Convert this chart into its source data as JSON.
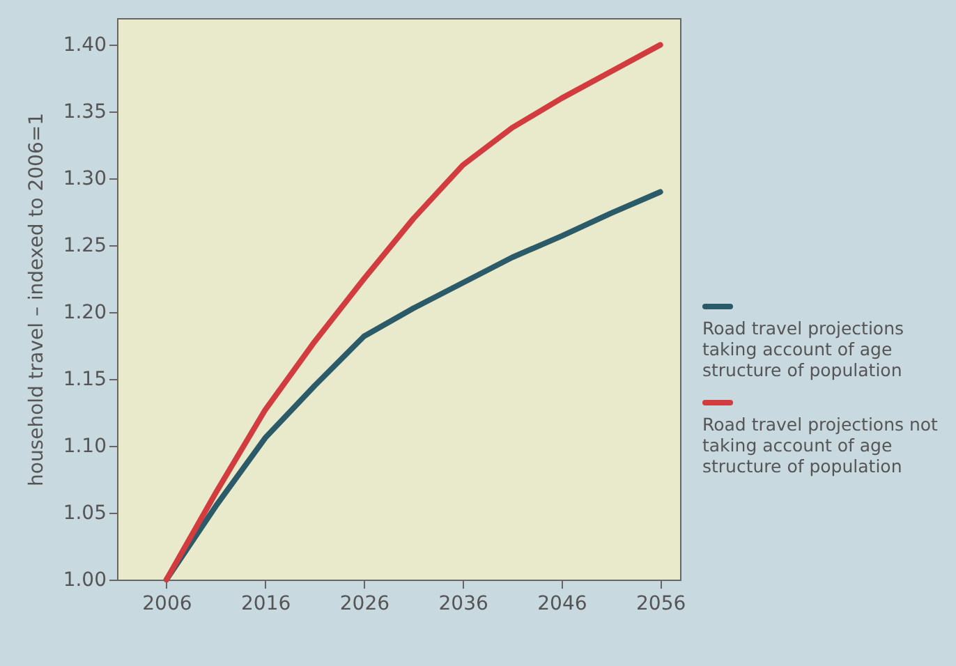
{
  "chart_data": {
    "type": "line",
    "ylabel": "household travel – indexed to 2006=1",
    "x": [
      2006,
      2011,
      2016,
      2021,
      2026,
      2031,
      2036,
      2041,
      2046,
      2051,
      2056
    ],
    "xlim": [
      2001,
      2058
    ],
    "xticks": [
      2006,
      2016,
      2026,
      2036,
      2046,
      2056
    ],
    "ylim": [
      1.0,
      1.42
    ],
    "yticks": [
      {
        "value": 1.0,
        "label": "1.00"
      },
      {
        "value": 1.05,
        "label": "1.05"
      },
      {
        "value": 1.1,
        "label": "1.10"
      },
      {
        "value": 1.15,
        "label": "1.15"
      },
      {
        "value": 1.2,
        "label": "1.20"
      },
      {
        "value": 1.25,
        "label": "1.25"
      },
      {
        "value": 1.3,
        "label": "1.30"
      },
      {
        "value": 1.35,
        "label": "1.35"
      },
      {
        "value": 1.4,
        "label": "1.40"
      }
    ],
    "grid": false,
    "legend": "right",
    "marker": "none",
    "line_style": "solid",
    "series": [
      {
        "name": "Road travel projections taking account of age structure of population",
        "color": "#2b5b69",
        "values": [
          1.0,
          1.055,
          1.106,
          1.145,
          1.182,
          1.203,
          1.222,
          1.241,
          1.257,
          1.274,
          1.29
        ]
      },
      {
        "name": "Road travel projections not taking account of age structure of population",
        "color": "#d23c3f",
        "values": [
          1.0,
          1.065,
          1.127,
          1.178,
          1.225,
          1.27,
          1.31,
          1.338,
          1.36,
          1.38,
          1.4
        ]
      }
    ]
  }
}
